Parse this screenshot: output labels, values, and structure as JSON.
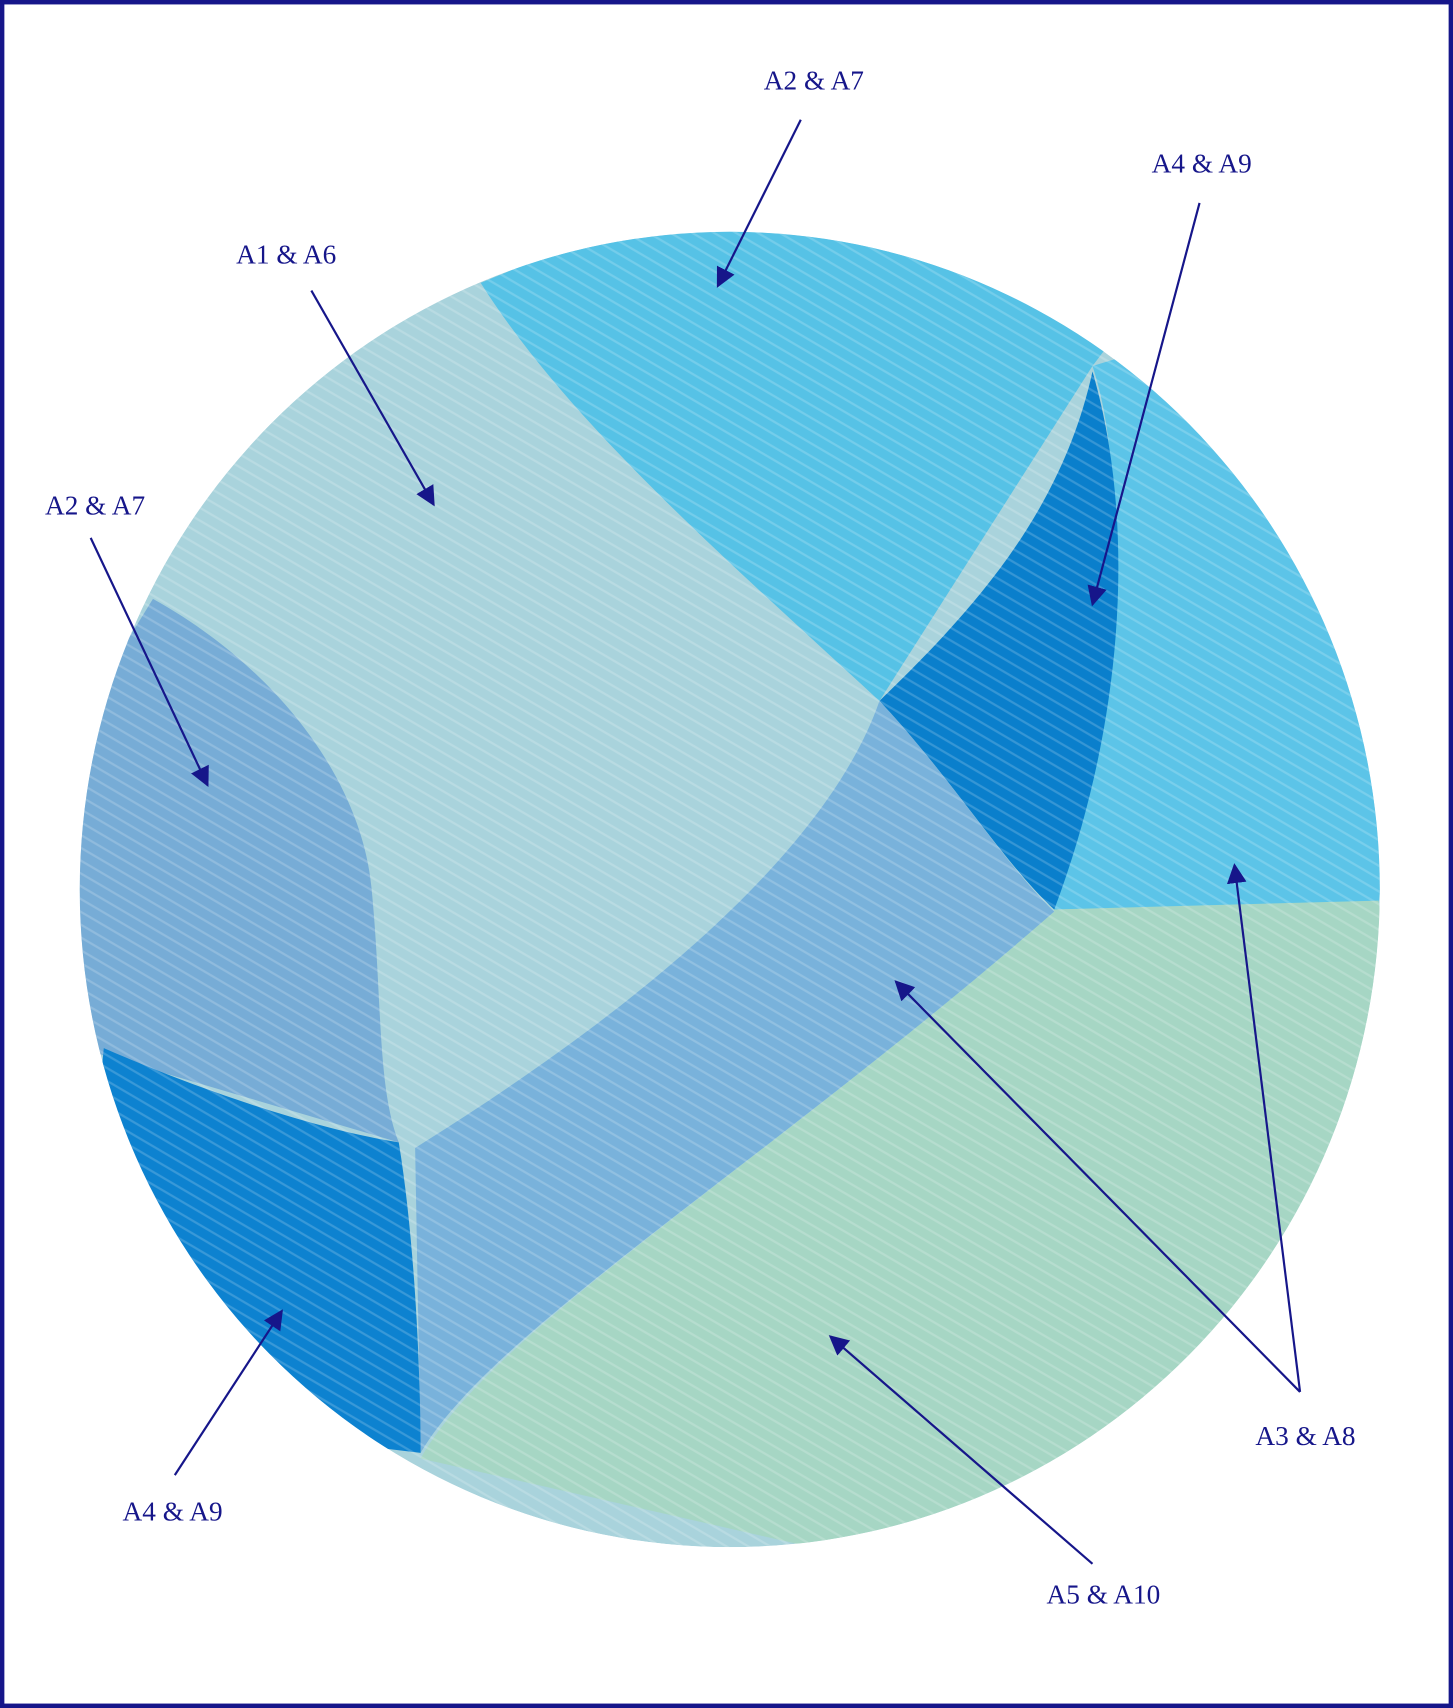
{
  "labels": [
    "A2 & A7",
    "A4 & A9",
    "A1 & A6",
    "A2 & A7",
    "A4 & A9",
    "A3 & A8",
    "A5 & A10"
  ]
}
